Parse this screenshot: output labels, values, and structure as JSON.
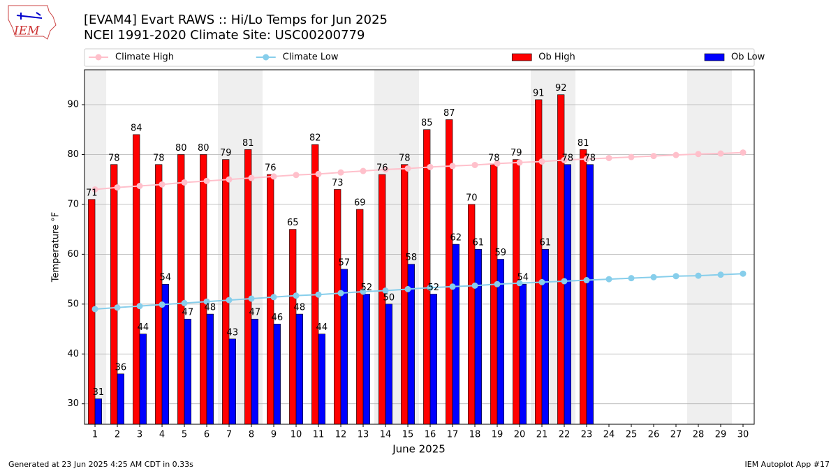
{
  "logo_text": "IEM",
  "footer": {
    "left": "Generated at 23 Jun 2025 4:25 AM CDT in 0.33s",
    "right": "IEM Autoplot App #17"
  },
  "chart_data": {
    "type": "bar",
    "title": "[EVAM4] Evart RAWS :: Hi/Lo Temps for Jun 2025",
    "subtitle": "NCEI 1991-2020 Climate Site: USC00200779",
    "xlabel": "June 2025",
    "ylabel": "Temperature °F",
    "x": [
      1,
      2,
      3,
      4,
      5,
      6,
      7,
      8,
      9,
      10,
      11,
      12,
      13,
      14,
      15,
      16,
      17,
      18,
      19,
      20,
      21,
      22,
      23,
      24,
      25,
      26,
      27,
      28,
      29,
      30
    ],
    "series": [
      {
        "name": "Climate High",
        "type": "line",
        "color": "#ffc0cb",
        "values": [
          73.0,
          73.4,
          73.7,
          74.0,
          74.4,
          74.7,
          75.0,
          75.3,
          75.6,
          75.9,
          76.1,
          76.4,
          76.7,
          77.0,
          77.2,
          77.5,
          77.7,
          77.9,
          78.2,
          78.4,
          78.6,
          78.9,
          79.1,
          79.3,
          79.5,
          79.7,
          79.9,
          80.1,
          80.2,
          80.4
        ]
      },
      {
        "name": "Climate Low",
        "type": "line",
        "color": "#87ceeb",
        "values": [
          49.0,
          49.3,
          49.6,
          49.9,
          50.2,
          50.5,
          50.8,
          51.1,
          51.4,
          51.7,
          51.9,
          52.2,
          52.5,
          52.7,
          53.0,
          53.3,
          53.5,
          53.7,
          54.0,
          54.2,
          54.4,
          54.6,
          54.8,
          55.0,
          55.2,
          55.4,
          55.6,
          55.7,
          55.9,
          56.1
        ]
      },
      {
        "name": "Ob High",
        "type": "bar",
        "color": "#ff0000",
        "values": [
          71,
          78,
          84,
          78,
          80,
          80,
          79,
          81,
          76,
          65,
          82,
          73,
          69,
          76,
          78,
          85,
          87,
          70,
          78,
          79,
          91,
          92,
          81,
          null,
          null,
          null,
          null,
          null,
          null,
          null
        ]
      },
      {
        "name": "Ob Low",
        "type": "bar",
        "color": "#0000ff",
        "values": [
          31,
          36,
          44,
          54,
          47,
          48,
          43,
          47,
          46,
          48,
          44,
          57,
          52,
          50,
          58,
          52,
          62,
          61,
          59,
          54,
          61,
          78,
          78,
          null,
          null,
          null,
          null,
          null,
          null,
          null
        ]
      }
    ],
    "shaded_days": [
      1,
      7,
      8,
      14,
      15,
      21,
      22,
      28,
      29
    ],
    "xlim": [
      0.53,
      30.5
    ],
    "ylim": [
      25.9,
      97.0
    ],
    "xticks": [
      1,
      2,
      3,
      4,
      5,
      6,
      7,
      8,
      9,
      10,
      11,
      12,
      13,
      14,
      15,
      16,
      17,
      18,
      19,
      20,
      21,
      22,
      23,
      24,
      25,
      26,
      27,
      28,
      29,
      30
    ],
    "yticks": [
      30,
      40,
      50,
      60,
      70,
      80,
      90
    ],
    "grid": true
  }
}
